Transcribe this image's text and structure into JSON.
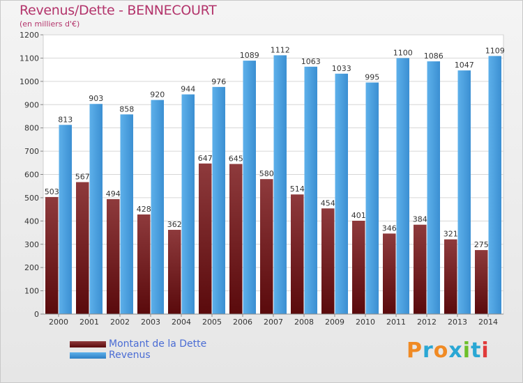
{
  "header": {
    "title": "Revenus/Dette - BENNECOURT",
    "subtitle": "(en milliers d'€)"
  },
  "logo": {
    "text": "Proxiti",
    "letters": [
      "P",
      "r",
      "o",
      "x",
      "i",
      "t",
      "i"
    ],
    "colors": [
      "#f08a24",
      "#2aa7d4",
      "#f08a24",
      "#2aa7d4",
      "#6cbf2a",
      "#2aa7d4",
      "#e03a3a"
    ]
  },
  "colors": {
    "debt_top": "#8e3a3c",
    "debt_bottom": "#5a0a0c",
    "revenue_light": "#5db0ea",
    "revenue_dark": "#2d7fc4"
  },
  "chart_data": {
    "type": "bar",
    "title": "Revenus/Dette - BENNECOURT",
    "subtitle": "(en milliers d'€)",
    "categories": [
      "2000",
      "2001",
      "2002",
      "2003",
      "2004",
      "2005",
      "2006",
      "2007",
      "2008",
      "2009",
      "2010",
      "2011",
      "2012",
      "2013",
      "2014"
    ],
    "series": [
      {
        "name": "Montant de la Dette",
        "values": [
          503,
          567,
          494,
          428,
          362,
          647,
          645,
          580,
          514,
          454,
          401,
          346,
          384,
          321,
          275
        ]
      },
      {
        "name": "Revenus",
        "values": [
          813,
          903,
          858,
          920,
          944,
          976,
          1089,
          1112,
          1063,
          1033,
          995,
          1100,
          1086,
          1047,
          1109
        ]
      }
    ],
    "ylim": [
      0,
      1200
    ],
    "yticks": [
      0,
      100,
      200,
      300,
      400,
      500,
      600,
      700,
      800,
      900,
      1000,
      1100,
      1200
    ],
    "grid": true,
    "legend": "bottom-left"
  }
}
